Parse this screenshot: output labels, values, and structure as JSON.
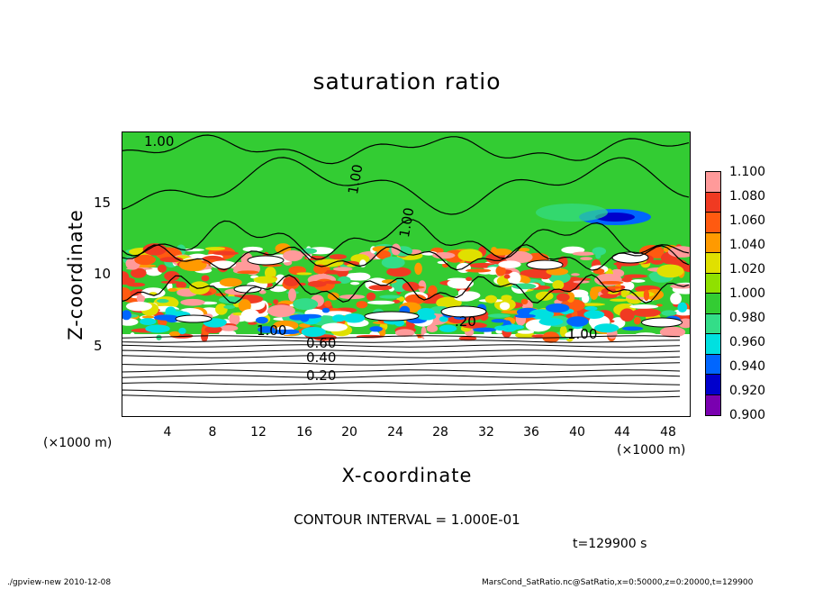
{
  "chart_data": {
    "type": "heatmap",
    "title": "saturation ratio",
    "xlabel": "X-coordinate",
    "ylabel": "Z-coordinate",
    "x_unit_label": "(×1000 m)",
    "xlim": [
      0,
      50
    ],
    "ylim": [
      0,
      20
    ],
    "x_ticks": [
      "4",
      "8",
      "12",
      "16",
      "20",
      "24",
      "28",
      "32",
      "36",
      "40",
      "44",
      "48"
    ],
    "y_ticks": [
      "5",
      "10",
      "15"
    ],
    "colorbar_levels": [
      "1.100",
      "1.080",
      "1.060",
      "1.040",
      "1.020",
      "1.000",
      "0.980",
      "0.960",
      "0.940",
      "0.920",
      "0.900"
    ],
    "colorbar_colors": [
      "#ff9a9a",
      "#f03a22",
      "#ff5a10",
      "#ff9a00",
      "#e0e000",
      "#90e000",
      "#33cc33",
      "#33dd88",
      "#00e0e0",
      "#0066ff",
      "#0000cc",
      "#7a00b0"
    ],
    "contour_labels": [
      "1.00",
      "1.00",
      "1.00",
      "1.00",
      "0.60",
      "0.40",
      "0.20",
      ".20",
      "1.00"
    ],
    "contour_interval": "CONTOUR INTERVAL = 1.000E-01",
    "time": "t=129900 s"
  },
  "footer": {
    "left": "./gpview-new  2010-12-08",
    "right": "MarsCond_SatRatio.nc@SatRatio,x=0:50000,z=0:20000,t=129900"
  }
}
